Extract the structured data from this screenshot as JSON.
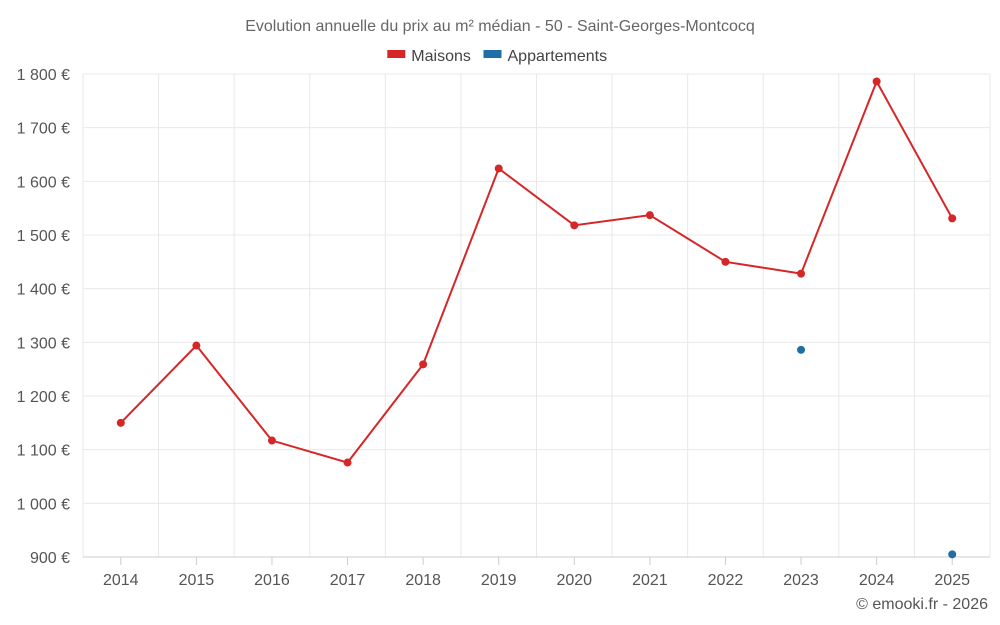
{
  "chart_data": {
    "type": "line",
    "title": "Evolution annuelle du prix au m² médian - 50 - Saint-Georges-Montcocq",
    "categories": [
      "2014",
      "2015",
      "2016",
      "2017",
      "2018",
      "2019",
      "2020",
      "2021",
      "2022",
      "2023",
      "2024",
      "2025"
    ],
    "y_tick_labels": [
      "900 €",
      "1 000 €",
      "1 100 €",
      "1 200 €",
      "1 300 €",
      "1 400 €",
      "1 500 €",
      "1 600 €",
      "1 700 €",
      "1 800 €"
    ],
    "y_ticks": [
      900,
      1000,
      1100,
      1200,
      1300,
      1400,
      1500,
      1600,
      1700,
      1800
    ],
    "ylim": [
      900,
      1800
    ],
    "xlabel": "",
    "ylabel": "",
    "grid": true,
    "legend_position": "top-center",
    "series": [
      {
        "name": "Maisons",
        "color": "#d62728",
        "values": [
          1150,
          1294,
          1117,
          1076,
          1259,
          1624,
          1518,
          1537,
          1450,
          1428,
          1786,
          1531
        ]
      },
      {
        "name": "Appartements",
        "color": "#1f6fa6",
        "values": [
          null,
          null,
          null,
          null,
          null,
          null,
          null,
          null,
          null,
          1286,
          null,
          905
        ]
      }
    ]
  },
  "credit": "© emooki.fr - 2026"
}
